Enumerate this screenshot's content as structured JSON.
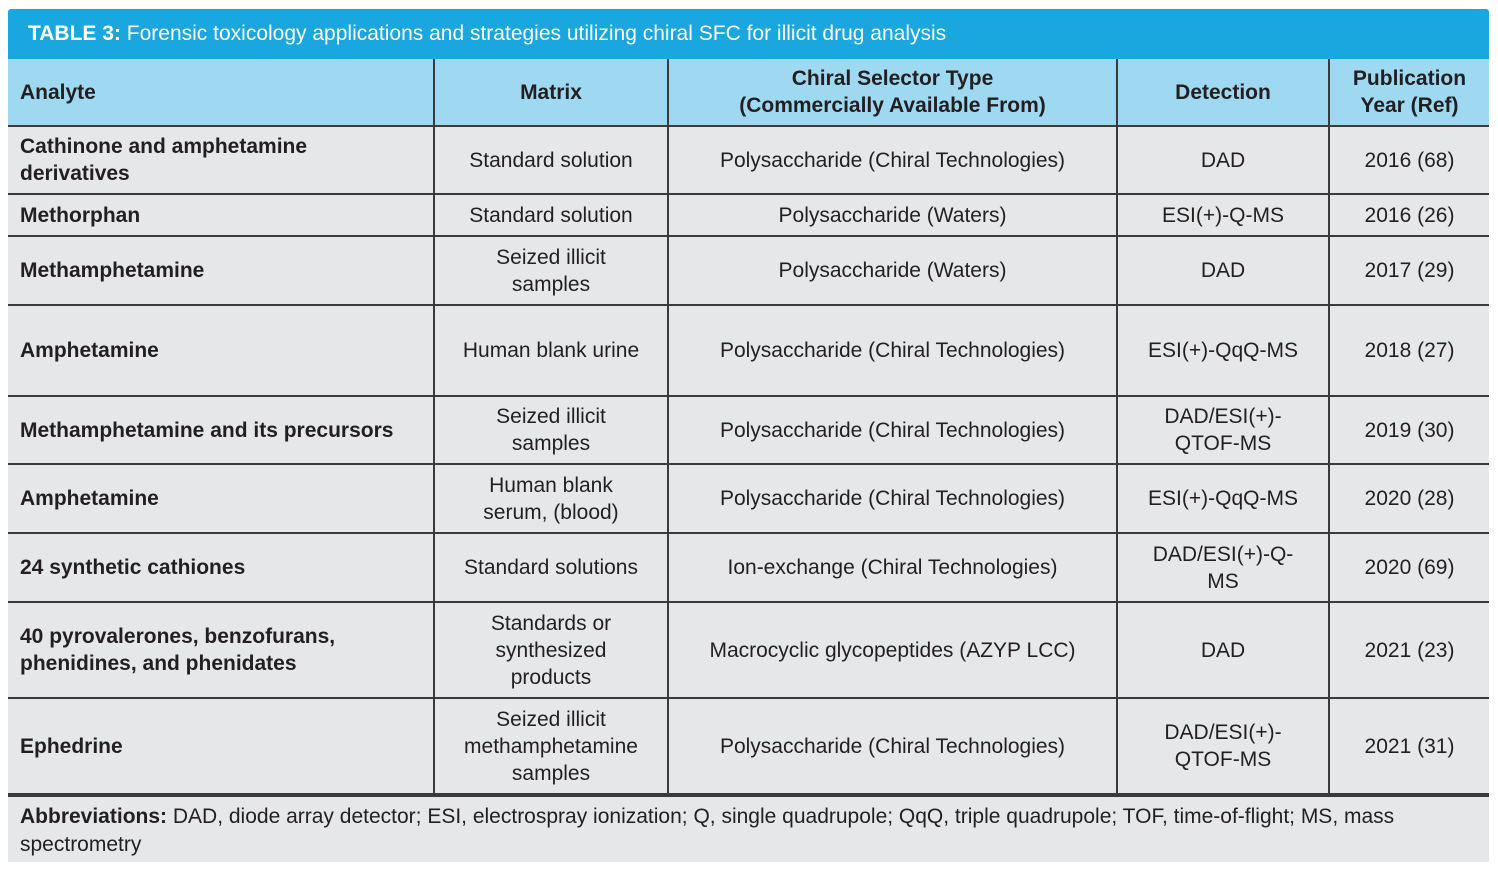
{
  "title": {
    "lead": "TABLE 3:",
    "text": " Forensic toxicology applications and strategies utilizing chiral SFC for illicit drug analysis"
  },
  "headers": {
    "analyte": "Analyte",
    "matrix": "Matrix",
    "selector": "Chiral Selector Type (Commercially Available From)",
    "detection": "Detection",
    "year": "Publication Year (Ref)"
  },
  "rows": [
    {
      "analyte": "Cathinone and amphetamine derivatives",
      "matrix": "Standard solution",
      "selector": "Polysaccharide (Chiral Technologies)",
      "detection": "DAD",
      "year": "2016 (68)"
    },
    {
      "analyte": "Methorphan",
      "matrix": "Standard solution",
      "selector": "Polysaccharide (Waters)",
      "detection": "ESI(+)-Q-MS",
      "year": "2016 (26)"
    },
    {
      "analyte": "Methamphetamine",
      "matrix": "Seized illicit samples",
      "selector": "Polysaccharide (Waters)",
      "detection": "DAD",
      "year": "2017 (29)"
    },
    {
      "analyte": "Amphetamine",
      "matrix": "Human blank urine",
      "selector": "Polysaccharide (Chiral Technologies)",
      "detection": "ESI(+)-QqQ-MS",
      "year": "2018 (27)"
    },
    {
      "analyte": "Methamphetamine and its precursors",
      "matrix": "Seized illicit samples",
      "selector": "Polysaccharide (Chiral Technologies)",
      "detection": "DAD/ESI(+)-QTOF-MS",
      "year": "2019 (30)"
    },
    {
      "analyte": "Amphetamine",
      "matrix": "Human blank serum, (blood)",
      "selector": "Polysaccharide (Chiral Technologies)",
      "detection": "ESI(+)-QqQ-MS",
      "year": "2020 (28)"
    },
    {
      "analyte": "24 synthetic cathiones",
      "matrix": "Standard solutions",
      "selector": "Ion-exchange (Chiral Technologies)",
      "detection": "DAD/ESI(+)-Q-MS",
      "year": "2020 (69)"
    },
    {
      "analyte": "40 pyrovalerones, benzofurans, phenidines, and phenidates",
      "matrix": "Standards or synthesized products",
      "selector": "Macrocyclic glycopeptides (AZYP LCC)",
      "detection": "DAD",
      "year": "2021 (23)"
    },
    {
      "analyte": "Ephedrine",
      "matrix": "Seized illicit methamphetamine samples",
      "selector": "Polysaccharide (Chiral Technologies)",
      "detection": "DAD/ESI(+)-QTOF-MS",
      "year": "2021 (31)"
    }
  ],
  "footer": {
    "lead": "Abbreviations:",
    "text": " DAD, diode array detector; ESI, electrospray ionization; Q, single quadrupole; QqQ, triple quadrupole; TOF, time-of-flight; MS, mass spectrometry"
  }
}
